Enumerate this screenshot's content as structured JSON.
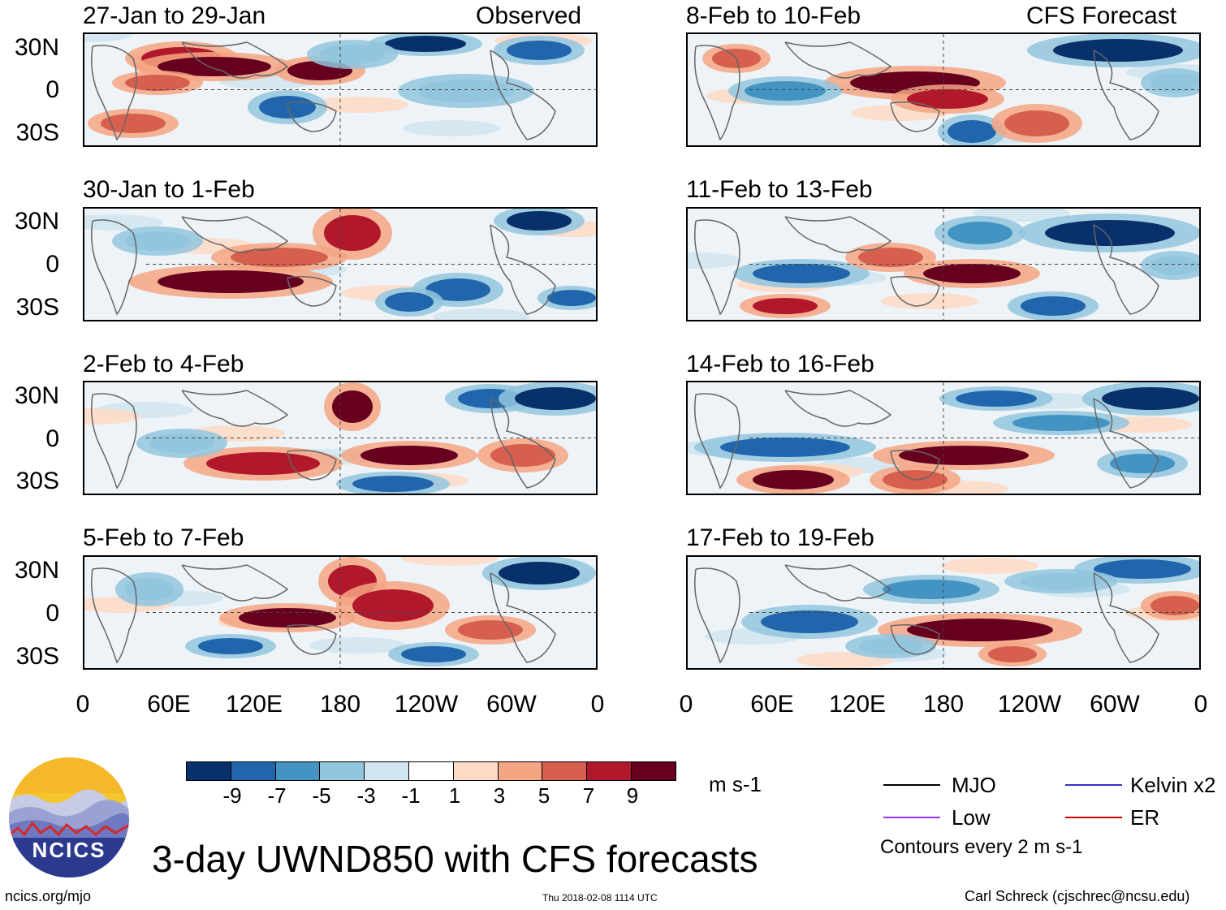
{
  "chart_data": {
    "type": "heatmap",
    "title": "3-day UWND850 with CFS forecasts",
    "variable": "UWND850",
    "units": "m s-1",
    "lat_ticks": [
      "30N",
      "0",
      "30S"
    ],
    "lon_ticks": [
      "0",
      "60E",
      "120E",
      "180",
      "120W",
      "60W",
      "0"
    ],
    "lon_range": [
      0,
      360
    ],
    "lat_range": [
      -40,
      40
    ],
    "colorbar": {
      "labels": [
        "-9",
        "-7",
        "-5",
        "-3",
        "-1",
        "1",
        "3",
        "5",
        "7",
        "9"
      ],
      "colors": [
        "#08306b",
        "#2166ac",
        "#4393c3",
        "#92c5de",
        "#d1e5f0",
        "#ffffff",
        "#fddbc7",
        "#f4a582",
        "#d6604d",
        "#b2182b",
        "#67001f"
      ],
      "units": "m s-1"
    },
    "panels_observed": [
      {
        "label": "27-Jan to 29-Jan",
        "tag": "Observed"
      },
      {
        "label": "30-Jan to 1-Feb",
        "tag": ""
      },
      {
        "label": "2-Feb to 4-Feb",
        "tag": ""
      },
      {
        "label": "5-Feb to 7-Feb",
        "tag": ""
      }
    ],
    "panels_forecast": [
      {
        "label": "8-Feb to 10-Feb",
        "tag": "CFS Forecast"
      },
      {
        "label": "11-Feb to 13-Feb",
        "tag": ""
      },
      {
        "label": "14-Feb to 16-Feb",
        "tag": ""
      },
      {
        "label": "17-Feb to 19-Feb",
        "tag": ""
      }
    ],
    "contour_legend": [
      {
        "name": "MJO",
        "color": "#000000"
      },
      {
        "name": "Kelvin x2",
        "color": "#3333cc"
      },
      {
        "name": "Low",
        "color": "#9933ff"
      },
      {
        "name": "ER",
        "color": "#cc0000"
      }
    ],
    "contour_note": "Contours every 2 m s-1"
  },
  "logo": {
    "text": "NCICS"
  },
  "footer": {
    "left": "ncics.org/mjo",
    "center": "Thu 2018-02-08 1114 UTC",
    "right": "Carl Schreck (cjschrec@ncsu.edu)"
  }
}
